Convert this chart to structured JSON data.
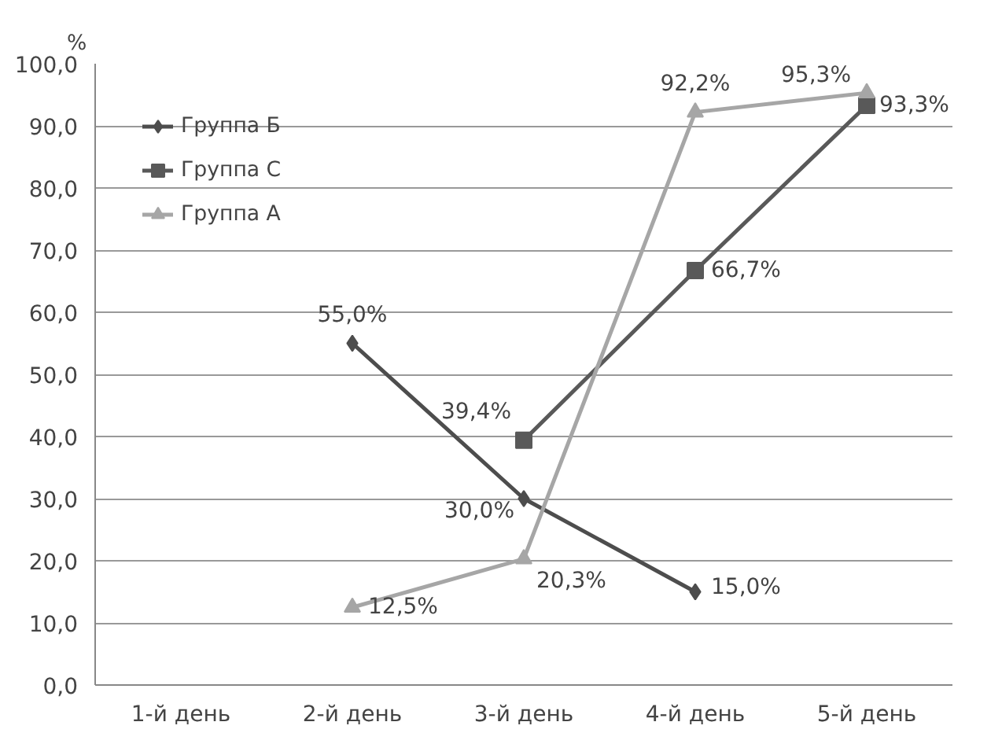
{
  "chart_data": {
    "type": "line",
    "ylabel": "%",
    "categories": [
      "1-й день",
      "2-й день",
      "3-й день",
      "4-й день",
      "5-й день"
    ],
    "ylim": [
      0,
      100
    ],
    "yticks": [
      {
        "value": 0,
        "label": "0,0"
      },
      {
        "value": 10,
        "label": "10,0"
      },
      {
        "value": 20,
        "label": "20,0"
      },
      {
        "value": 30,
        "label": "30,0"
      },
      {
        "value": 40,
        "label": "40,0"
      },
      {
        "value": 50,
        "label": "50,0"
      },
      {
        "value": 60,
        "label": "60,0"
      },
      {
        "value": 70,
        "label": "70,0"
      },
      {
        "value": 80,
        "label": "80,0"
      },
      {
        "value": 90,
        "label": "90,0"
      },
      {
        "value": 100,
        "label": "100,0"
      }
    ],
    "grid": "y",
    "legend": "top left",
    "line_style": "solid",
    "series": [
      {
        "name": "Группа Б",
        "color": "#4d4d4d",
        "marker": "diamond",
        "values": [
          null,
          55.0,
          30.0,
          15.0,
          null
        ],
        "value_labels": [
          null,
          "55,0%",
          "30,0%",
          "15,0%",
          null
        ]
      },
      {
        "name": "Группа С",
        "color": "#595959",
        "marker": "square",
        "values": [
          null,
          null,
          39.4,
          66.7,
          93.3
        ],
        "value_labels": [
          null,
          null,
          "39,4%",
          "66,7%",
          "93,3%"
        ]
      },
      {
        "name": "Группа А",
        "color": "#a6a6a6",
        "marker": "triangle",
        "values": [
          null,
          12.5,
          20.3,
          92.2,
          95.3
        ],
        "value_labels": [
          null,
          "12,5%",
          "20,3%",
          "92,2%",
          "95,3%"
        ]
      }
    ]
  }
}
